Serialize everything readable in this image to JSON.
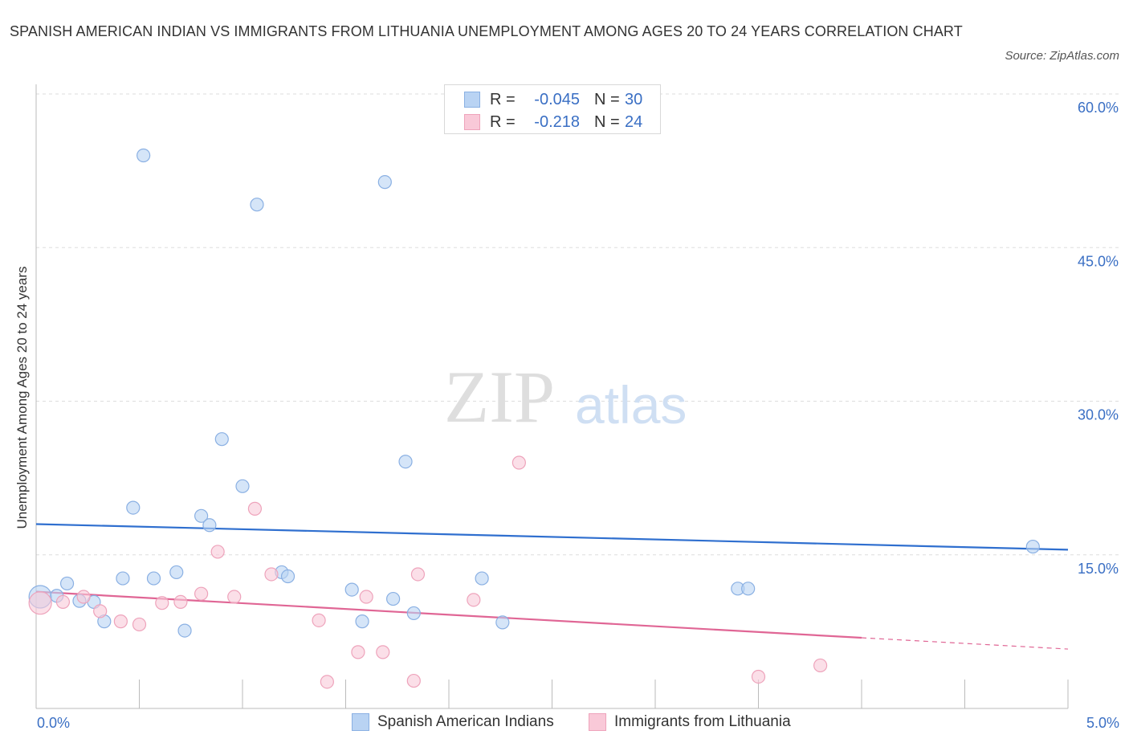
{
  "title": "SPANISH AMERICAN INDIAN VS IMMIGRANTS FROM LITHUANIA UNEMPLOYMENT AMONG AGES 20 TO 24 YEARS CORRELATION CHART",
  "source": "Source: ZipAtlas.com",
  "watermark": {
    "zip": "ZIP",
    "atlas": "atlas"
  },
  "colors": {
    "blue_fill": "#b9d3f3",
    "blue_stroke": "#8ab0e3",
    "blue_line": "#2f6fcf",
    "pink_fill": "#f9c9d8",
    "pink_stroke": "#eea3bb",
    "pink_line": "#e06695",
    "axis_label": "#3a6fc4",
    "grid": "#dddddd"
  },
  "legend_top": [
    {
      "r_label": "R =",
      "r_value": "-0.045",
      "n_label": "N =",
      "n_value": "30"
    },
    {
      "r_label": "R =",
      "r_value": "-0.218",
      "n_label": "N =",
      "n_value": "24"
    }
  ],
  "legend_bottom": [
    "Spanish American Indians",
    "Immigrants from Lithuania"
  ],
  "chart_data": {
    "type": "scatter",
    "title": "SPANISH AMERICAN INDIAN VS IMMIGRANTS FROM LITHUANIA UNEMPLOYMENT AMONG AGES 20 TO 24 YEARS CORRELATION CHART",
    "xlabel": "",
    "ylabel": "Unemployment Among Ages 20 to 24 years",
    "xlim": [
      0,
      5
    ],
    "ylim": [
      0,
      60
    ],
    "x_tick_labels": [
      "0.0%",
      "5.0%"
    ],
    "y_ticks": [
      15,
      30,
      45,
      60
    ],
    "y_tick_labels": [
      "15.0%",
      "30.0%",
      "45.0%",
      "60.0%"
    ],
    "series": [
      {
        "name": "Spanish American Indians",
        "r": -0.045,
        "n": 30,
        "trend": {
          "x": [
            0,
            5
          ],
          "y": [
            18.0,
            15.5
          ]
        },
        "points": [
          [
            0.02,
            10.9
          ],
          [
            0.1,
            11.0
          ],
          [
            0.15,
            12.2
          ],
          [
            0.21,
            10.5
          ],
          [
            0.28,
            10.4
          ],
          [
            0.33,
            8.5
          ],
          [
            0.42,
            12.7
          ],
          [
            0.47,
            19.6
          ],
          [
            0.52,
            54.0
          ],
          [
            0.57,
            12.7
          ],
          [
            0.68,
            13.3
          ],
          [
            0.72,
            7.6
          ],
          [
            0.8,
            18.8
          ],
          [
            0.84,
            17.9
          ],
          [
            0.9,
            26.3
          ],
          [
            1.0,
            21.7
          ],
          [
            1.07,
            49.2
          ],
          [
            1.19,
            13.3
          ],
          [
            1.22,
            12.9
          ],
          [
            1.53,
            11.6
          ],
          [
            1.58,
            8.5
          ],
          [
            1.69,
            51.4
          ],
          [
            1.73,
            10.7
          ],
          [
            1.79,
            24.1
          ],
          [
            1.83,
            9.3
          ],
          [
            2.16,
            12.7
          ],
          [
            2.26,
            8.4
          ],
          [
            3.4,
            11.7
          ],
          [
            3.45,
            11.7
          ],
          [
            4.83,
            15.8
          ]
        ]
      },
      {
        "name": "Immigrants from Lithuania",
        "r": -0.218,
        "n": 24,
        "trend": {
          "x": [
            0,
            4.0
          ],
          "y": [
            11.4,
            6.9
          ],
          "dashed_to": {
            "x": 5,
            "y": 5.8
          }
        },
        "points": [
          [
            0.02,
            10.3
          ],
          [
            0.13,
            10.4
          ],
          [
            0.23,
            10.9
          ],
          [
            0.31,
            9.5
          ],
          [
            0.41,
            8.5
          ],
          [
            0.5,
            8.2
          ],
          [
            0.61,
            10.3
          ],
          [
            0.7,
            10.4
          ],
          [
            0.8,
            11.2
          ],
          [
            0.88,
            15.3
          ],
          [
            0.96,
            10.9
          ],
          [
            1.06,
            19.5
          ],
          [
            1.14,
            13.1
          ],
          [
            1.37,
            8.6
          ],
          [
            1.41,
            2.6
          ],
          [
            1.56,
            5.5
          ],
          [
            1.6,
            10.9
          ],
          [
            1.68,
            5.5
          ],
          [
            1.83,
            2.7
          ],
          [
            1.85,
            13.1
          ],
          [
            2.12,
            10.6
          ],
          [
            2.34,
            24.0
          ],
          [
            3.5,
            3.1
          ],
          [
            3.8,
            4.2
          ]
        ]
      }
    ]
  }
}
